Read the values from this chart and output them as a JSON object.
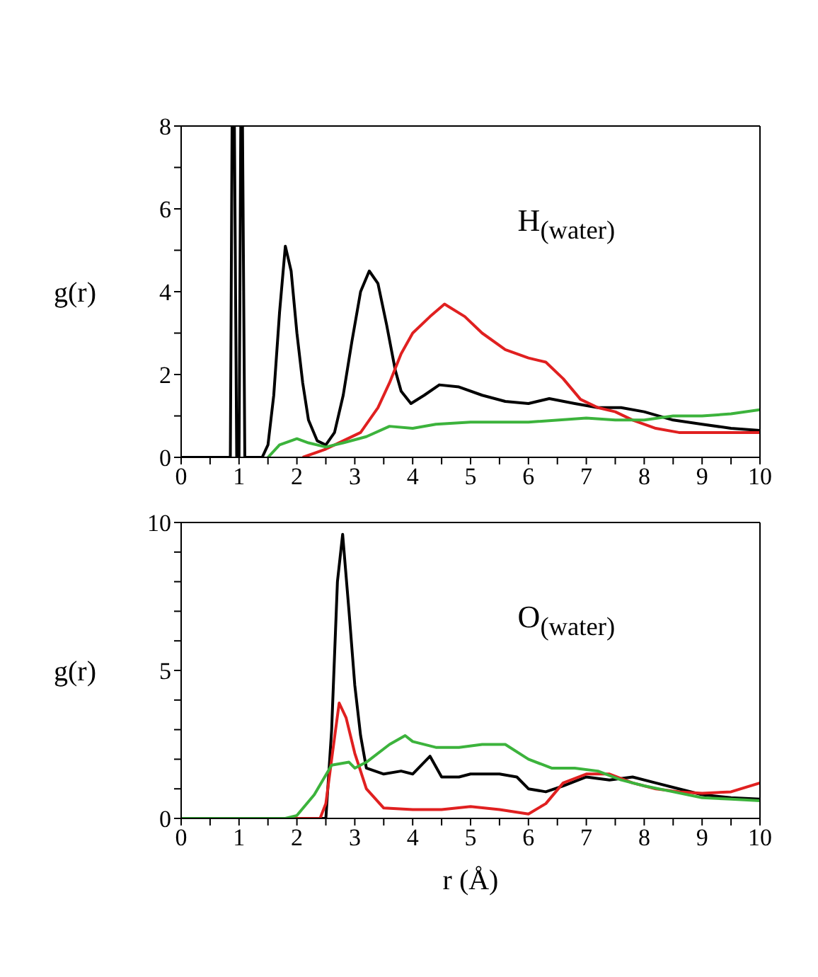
{
  "chart_data": [
    {
      "type": "line",
      "ylabel": "g(r)",
      "annotations": [
        "H$_{(water)}$"
      ],
      "xlim": [
        0,
        10
      ],
      "xticks": [
        0,
        {
          "value": 0.5,
          "label": null
        },
        1,
        {
          "value": 1.5,
          "label": null
        },
        2,
        {
          "value": 2.5,
          "label": null
        },
        3,
        {
          "value": 3.5,
          "label": null
        },
        4,
        {
          "value": 4.5,
          "label": null
        },
        5,
        {
          "value": 5.5,
          "label": null
        },
        6,
        {
          "value": 6.5,
          "label": null
        },
        7,
        {
          "value": 7.5,
          "label": null
        },
        8,
        {
          "value": 8.5,
          "label": null
        },
        9,
        {
          "value": 9.5,
          "label": null
        },
        10
      ],
      "ylim": [
        0,
        8
      ],
      "yticks": [
        0,
        {
          "value": 1,
          "label": null
        },
        2,
        {
          "value": 3,
          "label": null
        },
        4,
        {
          "value": 5,
          "label": null
        },
        6,
        {
          "value": 7,
          "label": null
        },
        8
      ],
      "grid": false,
      "series": [
        {
          "color": "#000000",
          "x": [
            0,
            0.85,
            0.88,
            0.92,
            0.96,
            1.0,
            1.03,
            1.06,
            1.1,
            1.4,
            1.5,
            1.6,
            1.7,
            1.8,
            1.9,
            2.0,
            2.1,
            2.2,
            2.35,
            2.5,
            2.65,
            2.8,
            2.95,
            3.1,
            3.25,
            3.4,
            3.55,
            3.7,
            3.8,
            3.97,
            4.2,
            4.46,
            4.8,
            5.2,
            5.6,
            6.0,
            6.36,
            6.8,
            7.2,
            7.6,
            8.0,
            8.5,
            9.0,
            9.5,
            10
          ],
          "values": [
            0,
            0,
            8,
            8,
            0,
            0,
            8,
            8,
            0,
            0,
            0.3,
            1.5,
            3.5,
            5.1,
            4.5,
            3.0,
            1.8,
            0.9,
            0.4,
            0.3,
            0.6,
            1.5,
            2.8,
            4.0,
            4.5,
            4.2,
            3.2,
            2.1,
            1.6,
            1.3,
            1.5,
            1.75,
            1.7,
            1.5,
            1.35,
            1.3,
            1.42,
            1.3,
            1.2,
            1.2,
            1.1,
            0.9,
            0.8,
            0.7,
            0.65
          ]
        },
        {
          "color": "#e02020",
          "x": [
            2.1,
            2.5,
            2.8,
            3.1,
            3.4,
            3.6,
            3.8,
            4.0,
            4.3,
            4.55,
            4.9,
            5.2,
            5.6,
            6.0,
            6.3,
            6.6,
            6.9,
            7.2,
            7.5,
            7.8,
            8.2,
            8.6,
            9.0,
            10
          ],
          "values": [
            0,
            0.2,
            0.4,
            0.6,
            1.2,
            1.8,
            2.5,
            3.0,
            3.4,
            3.7,
            3.4,
            3.0,
            2.6,
            2.4,
            2.3,
            1.9,
            1.4,
            1.2,
            1.1,
            0.9,
            0.7,
            0.6,
            0.6,
            0.6
          ]
        },
        {
          "color": "#3cb33c",
          "x": [
            1.5,
            1.7,
            2.0,
            2.2,
            2.5,
            2.8,
            3.2,
            3.6,
            4.0,
            4.4,
            5.0,
            6.0,
            7.0,
            7.5,
            8.0,
            8.5,
            9.0,
            9.5,
            10
          ],
          "values": [
            0,
            0.3,
            0.45,
            0.35,
            0.25,
            0.35,
            0.5,
            0.75,
            0.7,
            0.8,
            0.85,
            0.85,
            0.95,
            0.9,
            0.9,
            1.0,
            1.0,
            1.05,
            1.15
          ]
        }
      ]
    },
    {
      "type": "line",
      "xlabel": "r (Å)",
      "ylabel": "g(r)",
      "annotations": [
        "O$_{(water)}$"
      ],
      "xlim": [
        0,
        10
      ],
      "xticks": [
        0,
        {
          "value": 0.5,
          "label": null
        },
        1,
        {
          "value": 1.5,
          "label": null
        },
        2,
        {
          "value": 2.5,
          "label": null
        },
        3,
        {
          "value": 3.5,
          "label": null
        },
        4,
        {
          "value": 4.5,
          "label": null
        },
        5,
        {
          "value": 5.5,
          "label": null
        },
        6,
        {
          "value": 6.5,
          "label": null
        },
        7,
        {
          "value": 7.5,
          "label": null
        },
        8,
        {
          "value": 8.5,
          "label": null
        },
        9,
        {
          "value": 9.5,
          "label": null
        },
        10
      ],
      "ylim": [
        0,
        10
      ],
      "yticks": [
        0,
        {
          "value": 1,
          "label": null
        },
        {
          "value": 2,
          "label": null
        },
        {
          "value": 3,
          "label": null
        },
        {
          "value": 4,
          "label": null
        },
        5,
        {
          "value": 6,
          "label": null
        },
        {
          "value": 7,
          "label": null
        },
        {
          "value": 8,
          "label": null
        },
        {
          "value": 9,
          "label": null
        },
        10
      ],
      "grid": false,
      "series": [
        {
          "color": "#000000",
          "x": [
            0,
            2.5,
            2.6,
            2.7,
            2.79,
            2.9,
            3.0,
            3.1,
            3.2,
            3.5,
            3.8,
            4.0,
            4.3,
            4.5,
            4.8,
            5.0,
            5.5,
            5.8,
            6.0,
            6.3,
            6.6,
            7.0,
            7.4,
            7.8,
            8.2,
            8.6,
            9.0,
            9.5,
            10
          ],
          "values": [
            0,
            0,
            3,
            8,
            9.6,
            7,
            4.5,
            2.8,
            1.7,
            1.5,
            1.6,
            1.5,
            2.1,
            1.4,
            1.4,
            1.5,
            1.5,
            1.4,
            1.0,
            0.9,
            1.1,
            1.4,
            1.3,
            1.4,
            1.2,
            1.0,
            0.8,
            0.7,
            0.65
          ]
        },
        {
          "color": "#e02020",
          "x": [
            0,
            2.4,
            2.5,
            2.6,
            2.73,
            2.85,
            3.0,
            3.2,
            3.5,
            4.0,
            4.5,
            5.0,
            5.5,
            6.0,
            6.3,
            6.6,
            7.0,
            7.4,
            7.8,
            8.2,
            8.6,
            9.0,
            9.5,
            10
          ],
          "values": [
            0,
            0,
            0.5,
            2.0,
            3.9,
            3.4,
            2.2,
            1.0,
            0.35,
            0.3,
            0.3,
            0.4,
            0.3,
            0.15,
            0.5,
            1.2,
            1.5,
            1.5,
            1.2,
            1.0,
            0.9,
            0.85,
            0.9,
            1.2
          ]
        },
        {
          "color": "#3cb33c",
          "x": [
            0,
            1.8,
            2.0,
            2.3,
            2.6,
            2.9,
            3.0,
            3.2,
            3.6,
            3.87,
            4.0,
            4.4,
            4.8,
            5.2,
            5.6,
            6.0,
            6.4,
            6.8,
            7.2,
            7.6,
            8.0,
            8.5,
            9.0,
            9.5,
            10
          ],
          "values": [
            0,
            0,
            0.1,
            0.8,
            1.8,
            1.9,
            1.7,
            1.9,
            2.5,
            2.8,
            2.6,
            2.4,
            2.4,
            2.5,
            2.5,
            2.0,
            1.7,
            1.7,
            1.6,
            1.3,
            1.1,
            0.9,
            0.7,
            0.65,
            0.6
          ]
        }
      ]
    }
  ]
}
